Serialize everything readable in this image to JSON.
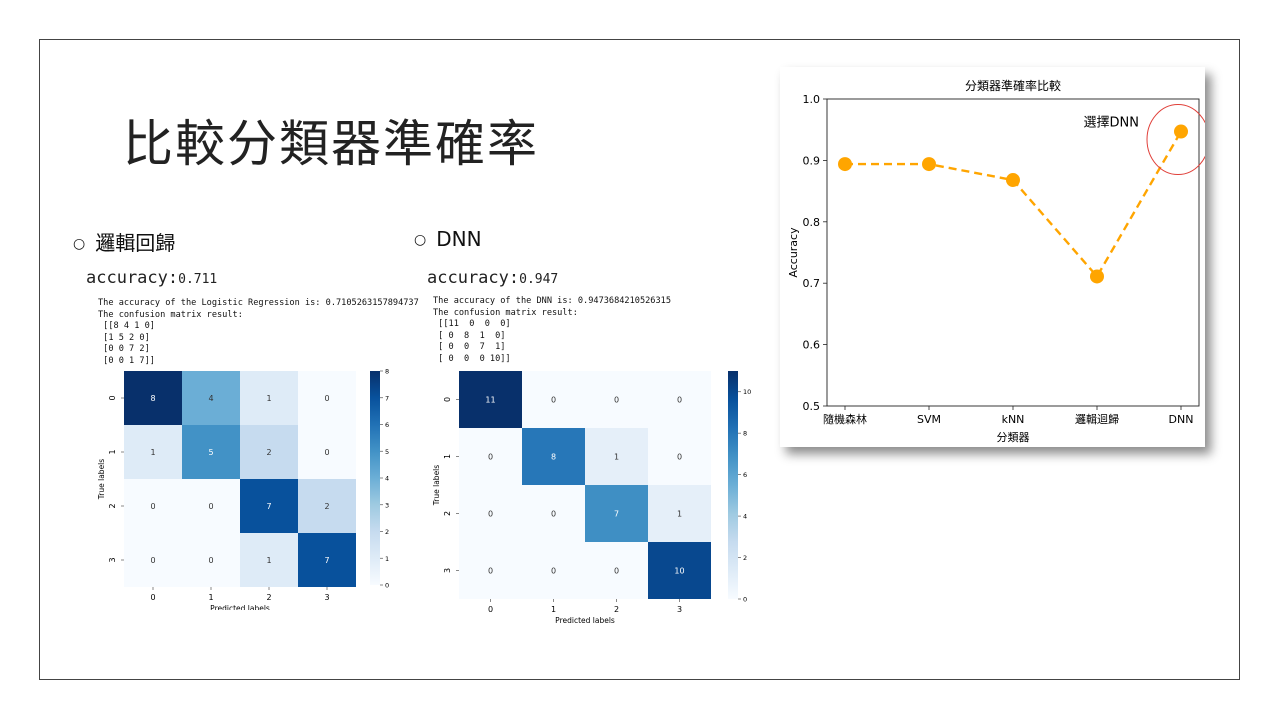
{
  "slide": {
    "title": "比較分類器準確率",
    "left": {
      "bullet": "邏輯回歸",
      "acc_label": "accuracy:",
      "acc_value": "0.711",
      "console": [
        "The accuracy of the Logistic Regression is: 0.7105263157894737",
        "The confusion matrix result:",
        " [[8 4 1 0]",
        " [1 5 2 0]",
        " [0 0 7 2]",
        " [0 0 1 7]]"
      ]
    },
    "right": {
      "bullet": "DNN",
      "acc_label": "accuracy:",
      "acc_value": "0.947",
      "console": [
        "The accuracy of the DNN is: 0.9473684210526315",
        "The confusion matrix result:",
        " [[11  0  0  0]",
        " [ 0  8  1  0]",
        " [ 0  0  7  1]",
        " [ 0  0  0 10]]"
      ]
    }
  },
  "chart_data": [
    {
      "type": "heatmap",
      "id": "logreg-confusion",
      "matrix": [
        [
          8,
          4,
          1,
          0
        ],
        [
          1,
          5,
          2,
          0
        ],
        [
          0,
          0,
          7,
          2
        ],
        [
          0,
          0,
          1,
          7
        ]
      ],
      "x_ticks": [
        "0",
        "1",
        "2",
        "3"
      ],
      "y_ticks": [
        "0",
        "1",
        "2",
        "3"
      ],
      "xlabel": "Predicted labels",
      "ylabel": "True labels",
      "vmin": 0,
      "vmax": 8,
      "colorbar_ticks": [
        0,
        1,
        2,
        3,
        4,
        5,
        6,
        7,
        8
      ],
      "colormap": "Blues"
    },
    {
      "type": "heatmap",
      "id": "dnn-confusion",
      "matrix": [
        [
          11,
          0,
          0,
          0
        ],
        [
          0,
          8,
          1,
          0
        ],
        [
          0,
          0,
          7,
          1
        ],
        [
          0,
          0,
          0,
          10
        ]
      ],
      "x_ticks": [
        "0",
        "1",
        "2",
        "3"
      ],
      "y_ticks": [
        "0",
        "1",
        "2",
        "3"
      ],
      "xlabel": "Predicted labels",
      "ylabel": "True labels",
      "vmin": 0,
      "vmax": 11,
      "colorbar_ticks": [
        0,
        2,
        4,
        6,
        8,
        10
      ],
      "colormap": "Blues"
    },
    {
      "type": "line",
      "id": "classifier-accuracy",
      "title": "分類器準確率比較",
      "categories": [
        "隨機森林",
        "SVM",
        "kNN",
        "邏輯迴歸",
        "DNN"
      ],
      "values": [
        0.894,
        0.894,
        0.868,
        0.711,
        0.947
      ],
      "xlabel": "分類器",
      "ylabel": "Accuracy",
      "ylim": [
        0.5,
        1.0
      ],
      "y_ticks": [
        "0.5",
        "0.6",
        "0.7",
        "0.8",
        "0.9",
        "1.0"
      ],
      "line_color": "#FFA500",
      "line_style": "dashed",
      "marker": "circle",
      "annotation": {
        "text": "選擇DNN",
        "target_index": 4,
        "circle_color": "#e0403a"
      }
    }
  ]
}
